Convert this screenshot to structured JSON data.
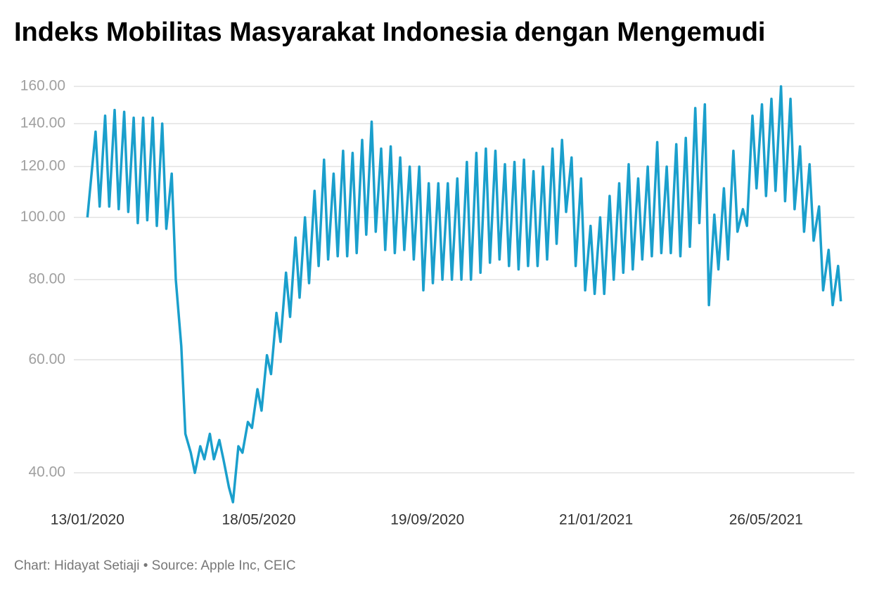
{
  "chart_data": {
    "type": "line",
    "title": "Indeks Mobilitas Masyarakat Indonesia dengan Mengemudi",
    "footer": "Chart: Hidayat Setiaji • Source: Apple Inc, CEIC",
    "color": "#1a9fcc",
    "log_scale": true,
    "grid": true,
    "ylim": [
      36,
      160
    ],
    "yticks": [
      {
        "value": 40,
        "label": "40.00"
      },
      {
        "value": 60,
        "label": "60.00"
      },
      {
        "value": 80,
        "label": "80.00"
      },
      {
        "value": 100,
        "label": "100.00"
      },
      {
        "value": 120,
        "label": "120.00"
      },
      {
        "value": 140,
        "label": "140.00"
      },
      {
        "value": 160,
        "label": "160.00"
      }
    ],
    "xlim": [
      "03/01/2020",
      "30/07/2021"
    ],
    "xticks": [
      "13/01/2020",
      "18/05/2020",
      "19/09/2020",
      "21/01/2021",
      "26/05/2021"
    ],
    "x": [
      "13/01/2020",
      "19/01/2020",
      "22/01/2020",
      "26/01/2020",
      "29/01/2020",
      "02/02/2020",
      "05/02/2020",
      "09/02/2020",
      "12/02/2020",
      "16/02/2020",
      "19/02/2020",
      "23/02/2020",
      "26/02/2020",
      "01/03/2020",
      "04/03/2020",
      "08/03/2020",
      "11/03/2020",
      "15/03/2020",
      "18/03/2020",
      "22/03/2020",
      "25/03/2020",
      "29/03/2020",
      "01/04/2020",
      "05/04/2020",
      "08/04/2020",
      "12/04/2020",
      "15/04/2020",
      "19/04/2020",
      "22/04/2020",
      "26/04/2020",
      "29/04/2020",
      "03/05/2020",
      "06/05/2020",
      "10/05/2020",
      "13/05/2020",
      "17/05/2020",
      "20/05/2020",
      "24/05/2020",
      "27/05/2020",
      "31/05/2020",
      "03/06/2020",
      "07/06/2020",
      "10/06/2020",
      "14/06/2020",
      "17/06/2020",
      "21/06/2020",
      "24/06/2020",
      "28/06/2020",
      "01/07/2020",
      "05/07/2020",
      "08/07/2020",
      "12/07/2020",
      "15/07/2020",
      "19/07/2020",
      "22/07/2020",
      "26/07/2020",
      "29/07/2020",
      "02/08/2020",
      "05/08/2020",
      "09/08/2020",
      "12/08/2020",
      "16/08/2020",
      "19/08/2020",
      "23/08/2020",
      "26/08/2020",
      "30/08/2020",
      "02/09/2020",
      "06/09/2020",
      "09/09/2020",
      "13/09/2020",
      "16/09/2020",
      "20/09/2020",
      "23/09/2020",
      "27/09/2020",
      "30/09/2020",
      "04/10/2020",
      "07/10/2020",
      "11/10/2020",
      "14/10/2020",
      "18/10/2020",
      "21/10/2020",
      "25/10/2020",
      "28/10/2020",
      "01/11/2020",
      "04/11/2020",
      "08/11/2020",
      "11/11/2020",
      "15/11/2020",
      "18/11/2020",
      "22/11/2020",
      "25/11/2020",
      "29/11/2020",
      "02/12/2020",
      "06/12/2020",
      "09/12/2020",
      "13/12/2020",
      "16/12/2020",
      "20/12/2020",
      "23/12/2020",
      "27/12/2020",
      "30/12/2020",
      "03/01/2021",
      "06/01/2021",
      "10/01/2021",
      "13/01/2021",
      "17/01/2021",
      "20/01/2021",
      "24/01/2021",
      "27/01/2021",
      "31/01/2021",
      "03/02/2021",
      "07/02/2021",
      "10/02/2021",
      "14/02/2021",
      "17/02/2021",
      "21/02/2021",
      "24/02/2021",
      "28/02/2021",
      "03/03/2021",
      "07/03/2021",
      "10/03/2021",
      "14/03/2021",
      "17/03/2021",
      "21/03/2021",
      "24/03/2021",
      "28/03/2021",
      "31/03/2021",
      "04/04/2021",
      "07/04/2021",
      "11/04/2021",
      "14/04/2021",
      "18/04/2021",
      "21/04/2021",
      "25/04/2021",
      "28/04/2021",
      "02/05/2021",
      "05/05/2021",
      "09/05/2021",
      "12/05/2021",
      "16/05/2021",
      "19/05/2021",
      "23/05/2021",
      "26/05/2021",
      "30/05/2021",
      "02/06/2021",
      "06/06/2021",
      "09/06/2021",
      "13/06/2021",
      "16/06/2021",
      "20/06/2021",
      "23/06/2021",
      "27/06/2021",
      "30/06/2021",
      "04/07/2021",
      "07/07/2021",
      "11/07/2021",
      "14/07/2021",
      "18/07/2021",
      "20/07/2021"
    ],
    "values": [
      100,
      136,
      104,
      144,
      104,
      147,
      103,
      146,
      102,
      143,
      98,
      143,
      99,
      143,
      97,
      140,
      96,
      117,
      80,
      63,
      46,
      43,
      40,
      44,
      42,
      46,
      42,
      45,
      42,
      38,
      36,
      44,
      43,
      48,
      47,
      54,
      50,
      61,
      57,
      71,
      64,
      82,
      70,
      93,
      75,
      100,
      79,
      110,
      84,
      123,
      86,
      117,
      87,
      127,
      87,
      126,
      88,
      132,
      94,
      141,
      95,
      128,
      89,
      129,
      88,
      124,
      89,
      120,
      86,
      120,
      77,
      113,
      79,
      113,
      80,
      113,
      80,
      115,
      80,
      122,
      80,
      126,
      82,
      128,
      85,
      127,
      86,
      121,
      84,
      122,
      83,
      123,
      84,
      118,
      84,
      120,
      86,
      128,
      91,
      132,
      102,
      124,
      84,
      115,
      77,
      97,
      76,
      100,
      76,
      108,
      80,
      113,
      82,
      121,
      83,
      115,
      86,
      120,
      87,
      131,
      88,
      120,
      88,
      130,
      87,
      133,
      90,
      148,
      98,
      150,
      73,
      101,
      83,
      111,
      86,
      127,
      95,
      103,
      97,
      144,
      111,
      150,
      108,
      153,
      110,
      160,
      106,
      153,
      103,
      129,
      95,
      121,
      92,
      104,
      77,
      89,
      73,
      84,
      74
    ]
  }
}
